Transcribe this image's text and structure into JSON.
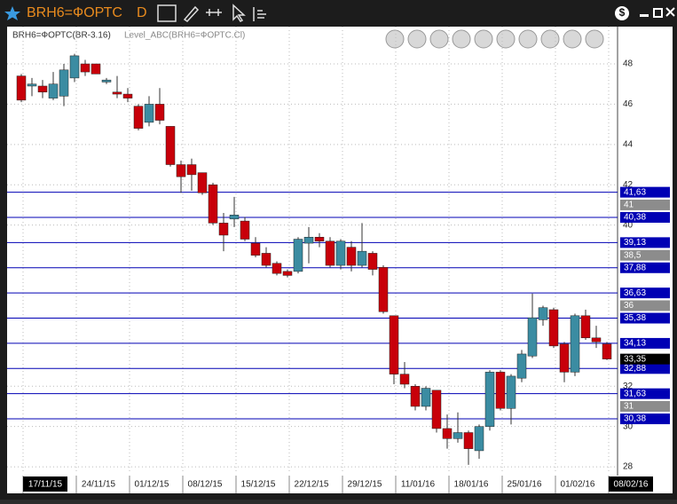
{
  "window": {
    "symbol": "BRH6=ФОРТС",
    "period": "D"
  },
  "chart_data": {
    "type": "candlestick",
    "title": "BRH6=ФОРТС(BR-3.16)",
    "indicator": "Level_ABC(BRH6=ФОРТС.Cl)",
    "categories": [
      "17/11/15",
      null,
      null,
      null,
      null,
      "24/11/15",
      null,
      null,
      null,
      null,
      "01/12/15",
      null,
      null,
      null,
      null,
      "08/12/15",
      null,
      null,
      null,
      null,
      "15/12/15",
      null,
      null,
      null,
      null,
      "22/12/15",
      null,
      null,
      null,
      null,
      "29/12/15",
      null,
      null,
      null,
      null,
      "11/01/16",
      null,
      null,
      null,
      null,
      "18/01/16",
      null,
      null,
      null,
      null,
      "25/01/16",
      null,
      null,
      null,
      null,
      "01/02/16",
      null,
      null,
      null,
      null,
      "08/02/16"
    ],
    "open": [
      47.4,
      46.9,
      46.9,
      46.3,
      46.4,
      47.3,
      48.0,
      48.0,
      47.1,
      46.6,
      46.5,
      45.9,
      45.1,
      46.0,
      44.9,
      43.0,
      43.0,
      42.6,
      42.0,
      40.1,
      40.3,
      40.2,
      39.1,
      38.6,
      38.1,
      37.7,
      37.7,
      39.1,
      39.4,
      39.2,
      38.0,
      38.9,
      38.0,
      38.6,
      37.9,
      35.5,
      32.6,
      32.0,
      31.0,
      31.8,
      29.9,
      29.4,
      29.7,
      28.8,
      30.0,
      32.7,
      30.9,
      32.4,
      33.5,
      35.3,
      35.8,
      34.1,
      32.7,
      35.5,
      34.4,
      34.1
    ],
    "high": [
      47.5,
      47.3,
      47.2,
      47.6,
      48.0,
      48.5,
      48.2,
      48.0,
      47.3,
      47.4,
      46.8,
      46.0,
      46.4,
      46.8,
      44.9,
      43.2,
      43.3,
      42.6,
      42.1,
      40.6,
      41.4,
      40.4,
      39.4,
      38.9,
      38.2,
      37.8,
      39.4,
      39.9,
      39.6,
      39.4,
      39.3,
      39.2,
      40.1,
      38.7,
      38.0,
      35.5,
      33.2,
      32.1,
      32.0,
      31.8,
      30.6,
      30.7,
      29.8,
      30.1,
      32.8,
      32.8,
      32.6,
      33.8,
      36.6,
      36.0,
      35.9,
      34.2,
      35.6,
      35.8,
      35.0,
      34.2
    ],
    "low": [
      46.1,
      46.4,
      46.3,
      46.2,
      45.9,
      47.1,
      47.4,
      47.5,
      47.0,
      46.3,
      46.1,
      44.7,
      44.9,
      45.0,
      42.9,
      41.6,
      41.7,
      41.5,
      40.0,
      38.7,
      39.9,
      39.2,
      38.4,
      37.9,
      37.5,
      37.4,
      37.6,
      38.1,
      38.9,
      37.9,
      37.8,
      37.7,
      37.9,
      37.5,
      35.6,
      32.1,
      31.9,
      30.8,
      30.8,
      29.7,
      28.9,
      29.2,
      28.1,
      28.4,
      29.8,
      30.8,
      30.1,
      32.2,
      33.4,
      35.0,
      33.9,
      32.2,
      32.5,
      34.3,
      33.9,
      33.3
    ],
    "close": [
      46.2,
      47.0,
      46.6,
      47.0,
      47.7,
      48.4,
      47.6,
      47.5,
      47.2,
      46.5,
      46.3,
      44.8,
      46.0,
      45.2,
      43.0,
      42.4,
      42.5,
      41.6,
      40.1,
      39.5,
      40.5,
      39.3,
      38.5,
      38.0,
      37.6,
      37.5,
      39.3,
      39.4,
      39.2,
      38.0,
      39.2,
      38.0,
      38.7,
      37.8,
      35.7,
      32.6,
      32.1,
      31.0,
      31.9,
      29.9,
      29.4,
      29.7,
      28.9,
      30.0,
      32.7,
      30.9,
      32.5,
      33.6,
      35.4,
      35.9,
      34.0,
      32.7,
      35.5,
      34.4,
      34.2,
      33.35
    ],
    "up_color": "#3b8ca2",
    "down_color": "#c8000a",
    "ylim": [
      27.74,
      49.85
    ],
    "yticks": [
      48,
      46,
      44,
      42,
      40,
      32,
      30,
      28
    ],
    "levels": [
      {
        "value": 41.63,
        "label": "41,63"
      },
      {
        "value": 40.38,
        "label": "40,38"
      },
      {
        "value": 39.13,
        "label": "39,13"
      },
      {
        "value": 37.88,
        "label": "37,88"
      },
      {
        "value": 36.63,
        "label": "36,63"
      },
      {
        "value": 35.38,
        "label": "35,38"
      },
      {
        "value": 34.13,
        "label": "34,13"
      },
      {
        "value": 32.88,
        "label": "32,88"
      },
      {
        "value": 31.63,
        "label": "31,63"
      },
      {
        "value": 30.38,
        "label": "30,38"
      }
    ],
    "level_color": "#0000b4",
    "mid_levels": [
      41,
      {
        "value": 38.5,
        "label": "38,5"
      },
      36,
      31
    ],
    "last_price": {
      "value": 33.35,
      "label": "33,35"
    },
    "grid": true
  }
}
